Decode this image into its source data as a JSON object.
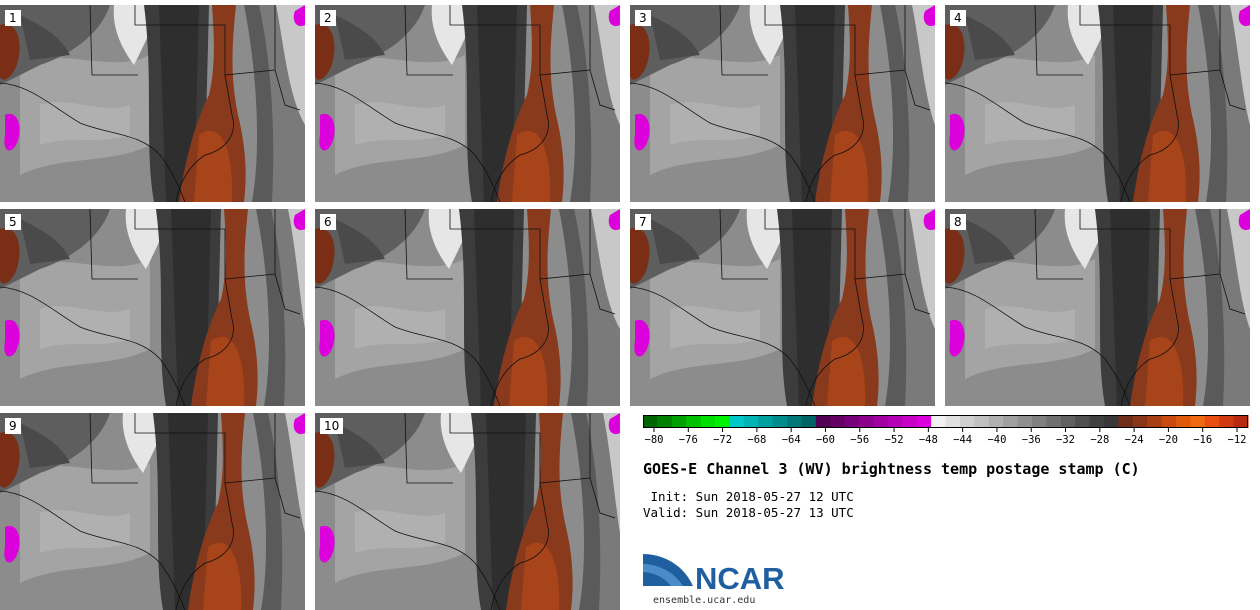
{
  "panels": [
    {
      "label": "1"
    },
    {
      "label": "2"
    },
    {
      "label": "3"
    },
    {
      "label": "4"
    },
    {
      "label": "5"
    },
    {
      "label": "6"
    },
    {
      "label": "7"
    },
    {
      "label": "8"
    },
    {
      "label": "9"
    },
    {
      "label": "10"
    }
  ],
  "colorbar": {
    "colors": [
      "#006400",
      "#008000",
      "#00a000",
      "#00c000",
      "#00e000",
      "#00f000",
      "#00c8c8",
      "#00b4b4",
      "#00a0a0",
      "#008c8c",
      "#007878",
      "#006464",
      "#500050",
      "#640064",
      "#780078",
      "#8c008c",
      "#a000a0",
      "#b400b4",
      "#c800c8",
      "#dc00dc",
      "#f0f0f0",
      "#e0e0e0",
      "#d0d0d0",
      "#c0c0c0",
      "#b0b0b0",
      "#a0a0a0",
      "#909090",
      "#808080",
      "#707070",
      "#606060",
      "#505050",
      "#404040",
      "#383838",
      "#6e2e1a",
      "#8a3418",
      "#a83e14",
      "#c84a10",
      "#e05a0c",
      "#f06810",
      "#e84e10",
      "#d03a10",
      "#b82a10"
    ],
    "ticks": [
      "−80",
      "−76",
      "−72",
      "−68",
      "−64",
      "−60",
      "−56",
      "−52",
      "−48",
      "−44",
      "−40",
      "−36",
      "−32",
      "−28",
      "−24",
      "−20",
      "−16",
      "−12"
    ]
  },
  "title": "GOES-E Channel 3 (WV) brightness temp postage stamp (C)",
  "init_line": " Init: Sun 2018-05-27 12 UTC",
  "valid_line": "Valid: Sun 2018-05-27 13 UTC",
  "logo_text": "NCAR",
  "url": "ensemble.ucar.edu"
}
